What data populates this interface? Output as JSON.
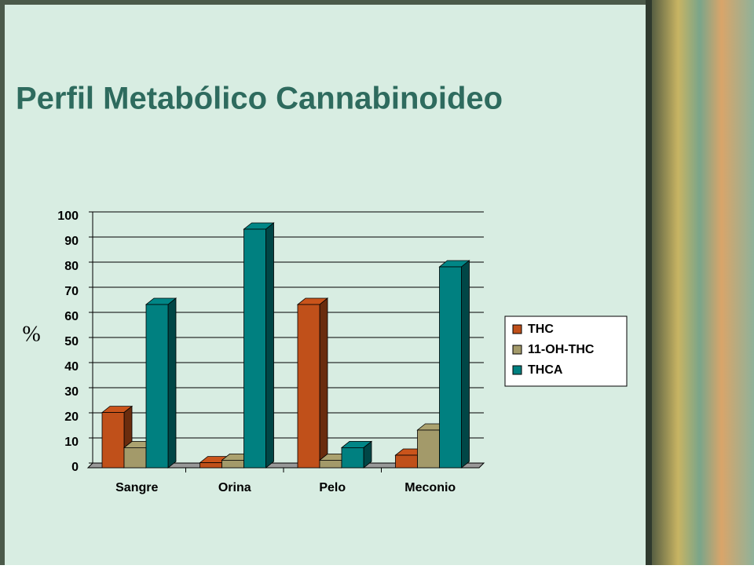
{
  "chart_data": {
    "type": "bar3d",
    "title": "Perfil Metabólico Cannabinoideo",
    "y_label": "%",
    "categories": [
      "Sangre",
      "Orina",
      "Pelo",
      "Meconio"
    ],
    "series": [
      {
        "name": "THC",
        "color": "#c0501a",
        "values": [
          22,
          2,
          65,
          5
        ]
      },
      {
        "name": "11-OH-THC",
        "color": "#a39a6a",
        "values": [
          8,
          3,
          3,
          15
        ]
      },
      {
        "name": "THCA",
        "color": "#008080",
        "values": [
          65,
          95,
          8,
          80
        ]
      }
    ],
    "ylim": [
      0,
      100
    ],
    "yticks": [
      0,
      10,
      20,
      30,
      40,
      50,
      60,
      70,
      80,
      90,
      100
    ],
    "grid": true,
    "legend": "right"
  }
}
